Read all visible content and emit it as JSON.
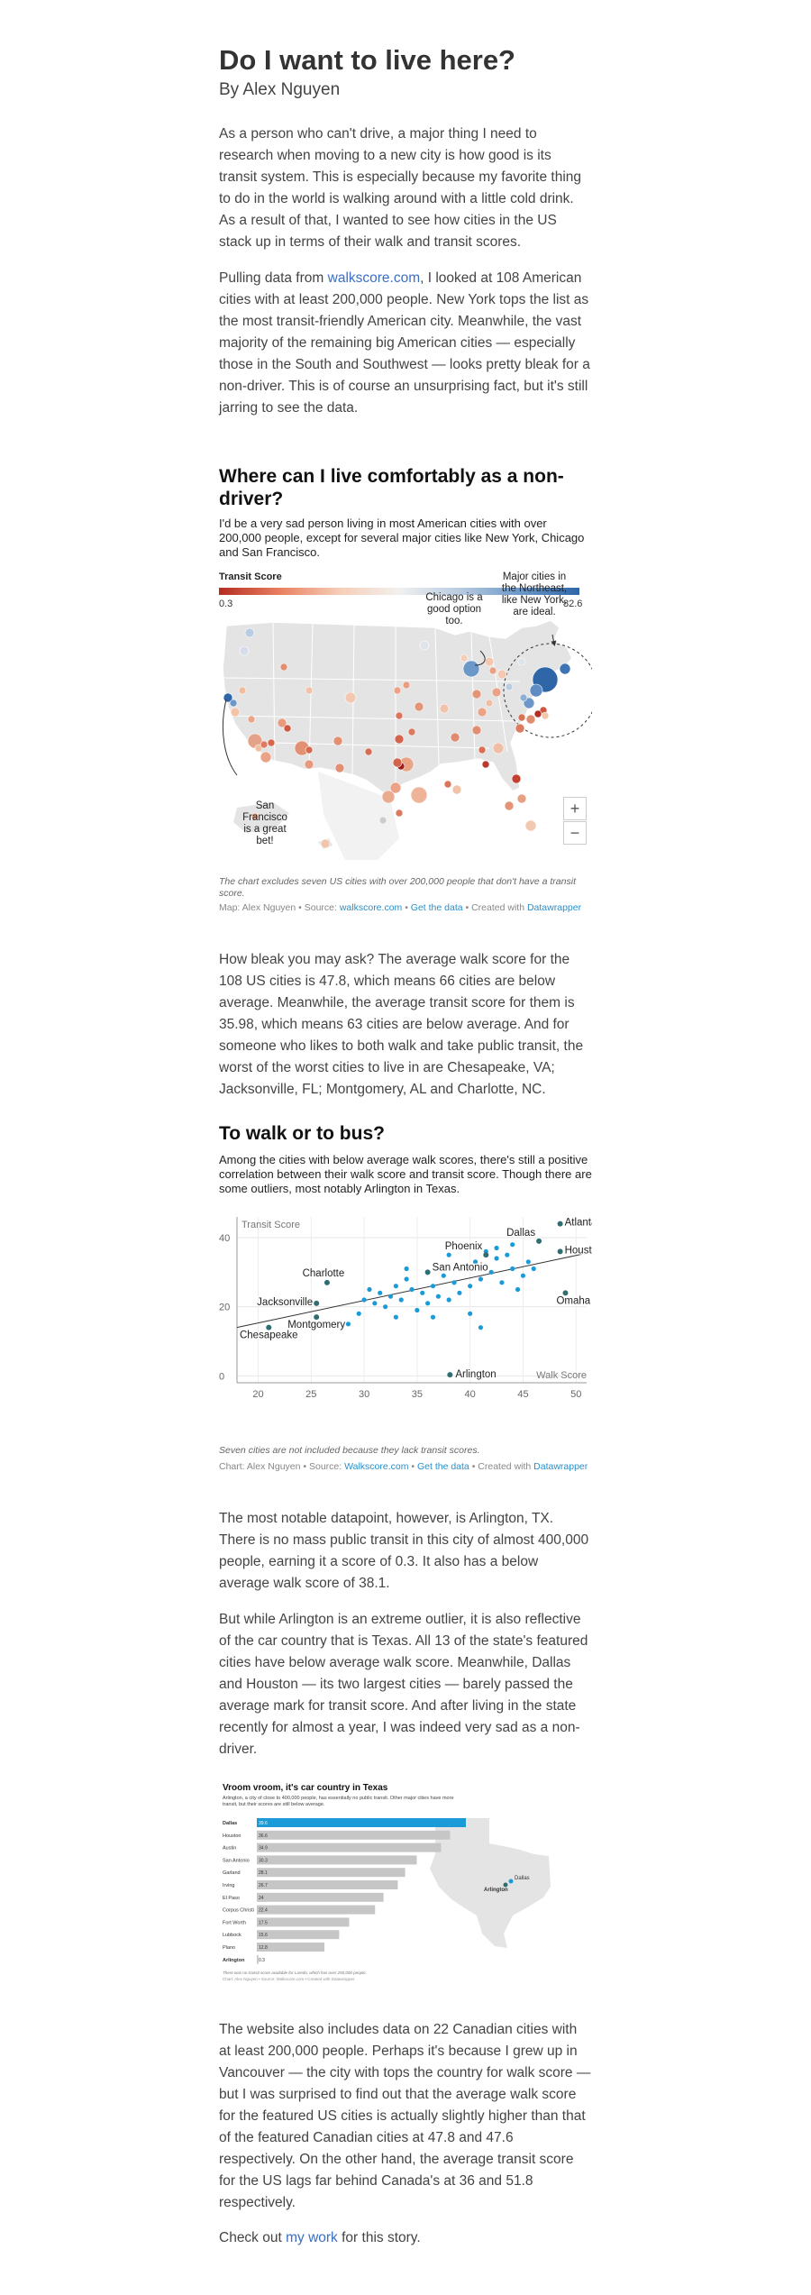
{
  "article": {
    "title": "Do I want to live here?",
    "byline": "By Alex Nguyen",
    "p1": "As a person who can't drive, a major thing I need to research when moving to a new city is how good is its transit system. This is especially because my favorite thing to do in the world is walking around with a little cold drink. As a result of that, I wanted to see how cities in the US stack up in terms of their walk and transit scores.",
    "p2_before_link": "Pulling data from ",
    "p2_link": "walkscore.com",
    "p2_after_link": ", I looked at 108 American cities with at least 200,000 people. New York tops the list as the most transit-friendly American city. Meanwhile, the vast majority of the remaining big American cities — especially those in the South and Southwest — looks pretty bleak for a non-driver. This is of course an unsurprising fact, but it's still jarring to see the data.",
    "p3": "How bleak you may ask? The average walk score for the 108 US cities is 47.8, which means 66 cities are below average. Meanwhile, the average transit score for them is 35.98, which means 63 cities are below average. And for someone who likes to both walk and take public transit, the worst of the worst cities to live in are Chesapeake, VA; Jacksonville, FL; Montgomery, AL and Charlotte, NC.",
    "p4": "The most notable datapoint, however, is Arlington, TX. There is no mass public transit in this city of almost 400,000 people, earning it a score of 0.3. It also has a below average walk score of 38.1.",
    "p5": "But while Arlington is an extreme outlier, it is also reflective of the car country that is Texas. All 13 of the state's featured cities have below average walk score. Meanwhile, Dallas and Houston — its two largest cities — barely passed the average mark for transit score. And after living in the state recently for almost a year, I was indeed very sad as a non-driver.",
    "p6": "The website also includes data on 22 Canadian cities with at least 200,000 people. Perhaps it's because I grew up in Vancouver — the city with tops the country for walk score — but I was surprised to find out that the average walk score for the featured US cities is actually slightly higher than that of the featured Canadian cities at 47.8 and 47.6 respectively. On the other hand, the average transit score for the US lags far behind Canada's at 36 and 51.8 respectively.",
    "p7_before_link": "Check out ",
    "p7_link": "my work",
    "p7_after_link": " for this story."
  },
  "map_section": {
    "heading": "Where can I live comfortably as a non-driver?",
    "dek": "I'd be a very sad person living in most American cities with over 200,000 people, except for several major cities like New York, Chicago and San Francisco.",
    "legend_title": "Transit Score",
    "legend_min": "0.3",
    "legend_max": "82.6",
    "annotation_chicago": [
      "Chicago is a",
      "good option",
      "too."
    ],
    "annotation_northeast": [
      "Major cities in",
      "the Northeast,",
      "like New York,",
      "are ideal."
    ],
    "annotation_sf": [
      "San",
      "Francisco",
      "is a great",
      "bet!"
    ],
    "zoom_in": "+",
    "zoom_out": "−",
    "note": "The chart excludes seven US cities with over 200,000 people that don't have a transit score.",
    "credit_prefix": "Map: Alex Nguyen • Source: ",
    "credit_source": "walkscore.com",
    "credit_sep1": " • ",
    "credit_data": "Get the data",
    "credit_sep2": " • Created with ",
    "credit_tool": "Datawrapper"
  },
  "scatter_section": {
    "heading": "To walk or to bus?",
    "dek": "Among the cities with below average walk scores, there's still a positive correlation between their walk score and transit score. Though there are some outliers, most notably Arlington in Texas.",
    "note": "Seven cities are not included because they lack transit scores.",
    "credit_prefix": "Chart: Alex Nguyen • Source: ",
    "credit_source": "Walkscore.com",
    "credit_sep1": " • ",
    "credit_data": "Get the data",
    "credit_sep2": " • Created with ",
    "credit_tool": "Datawrapper"
  },
  "chart_data": [
    {
      "type": "scatter",
      "xlabel": "Walk Score",
      "ylabel": "Transit Score",
      "xlim": [
        18,
        51
      ],
      "ylim": [
        -2,
        46
      ],
      "x_ticks": [
        "20",
        "25",
        "30",
        "35",
        "40",
        "45",
        "50"
      ],
      "y_ticks": [
        "0",
        "20",
        "40"
      ],
      "grid": true,
      "trendline": {
        "x": [
          18,
          51
        ],
        "y": [
          14.0,
          35.5
        ]
      },
      "color": "#1a9bd7",
      "highlight_color": "#2e6e72",
      "labeled_points": [
        {
          "label": "Atlanta",
          "x": 48.5,
          "y": 44
        },
        {
          "label": "Dallas",
          "x": 46.5,
          "y": 39
        },
        {
          "label": "Houston",
          "x": 48.5,
          "y": 36
        },
        {
          "label": "Phoenix",
          "x": 41.5,
          "y": 35
        },
        {
          "label": "San Antonio",
          "x": 36,
          "y": 30
        },
        {
          "label": "Charlotte",
          "x": 26.5,
          "y": 27
        },
        {
          "label": "Omaha",
          "x": 49,
          "y": 24
        },
        {
          "label": "Jacksonville",
          "x": 25.5,
          "y": 21
        },
        {
          "label": "Montgomery",
          "x": 25.5,
          "y": 17
        },
        {
          "label": "Chesapeake",
          "x": 21,
          "y": 14
        },
        {
          "label": "Arlington",
          "x": 38.1,
          "y": 0.3
        }
      ],
      "points": [
        {
          "x": 29.5,
          "y": 18
        },
        {
          "x": 28.5,
          "y": 15
        },
        {
          "x": 30,
          "y": 22
        },
        {
          "x": 31,
          "y": 21
        },
        {
          "x": 31.5,
          "y": 24
        },
        {
          "x": 32,
          "y": 20
        },
        {
          "x": 32.5,
          "y": 23
        },
        {
          "x": 33,
          "y": 26
        },
        {
          "x": 33.5,
          "y": 22
        },
        {
          "x": 34,
          "y": 28
        },
        {
          "x": 34.5,
          "y": 25
        },
        {
          "x": 35,
          "y": 19
        },
        {
          "x": 35.5,
          "y": 24
        },
        {
          "x": 36,
          "y": 21
        },
        {
          "x": 36.5,
          "y": 26
        },
        {
          "x": 37,
          "y": 23
        },
        {
          "x": 37.5,
          "y": 29
        },
        {
          "x": 38,
          "y": 22
        },
        {
          "x": 38.5,
          "y": 27
        },
        {
          "x": 39,
          "y": 24
        },
        {
          "x": 39.5,
          "y": 31
        },
        {
          "x": 40,
          "y": 26
        },
        {
          "x": 40.5,
          "y": 33
        },
        {
          "x": 41,
          "y": 28
        },
        {
          "x": 41.5,
          "y": 36
        },
        {
          "x": 42,
          "y": 30
        },
        {
          "x": 42.5,
          "y": 34
        },
        {
          "x": 43,
          "y": 27
        },
        {
          "x": 43.5,
          "y": 35
        },
        {
          "x": 44,
          "y": 31
        },
        {
          "x": 44.5,
          "y": 25
        },
        {
          "x": 45,
          "y": 29
        },
        {
          "x": 45.5,
          "y": 33
        },
        {
          "x": 46,
          "y": 31
        },
        {
          "x": 40,
          "y": 18
        },
        {
          "x": 41,
          "y": 14
        },
        {
          "x": 36.5,
          "y": 17
        },
        {
          "x": 34,
          "y": 31
        },
        {
          "x": 30.5,
          "y": 25
        },
        {
          "x": 38,
          "y": 35
        },
        {
          "x": 42.5,
          "y": 37
        },
        {
          "x": 44,
          "y": 38
        },
        {
          "x": 33,
          "y": 17
        }
      ]
    },
    {
      "type": "bar",
      "title": "Vroom vroom, it's car country in Texas",
      "subtitle": "Arlington, a city of close to 400,000 people, has essentially no public transit. Other major cities have more transit, but their scores are still below average.",
      "categories": [
        "Dallas",
        "Houston",
        "Austin",
        "San Antonio",
        "Garland",
        "Irving",
        "El Paso",
        "Corpus Christi",
        "Fort Worth",
        "Lubbock",
        "Plano",
        "Arlington"
      ],
      "values": [
        39.6,
        36.6,
        34.9,
        30.3,
        28.1,
        26.7,
        24.0,
        22.4,
        17.5,
        15.6,
        12.8,
        0.3
      ],
      "highlight_color": "#1a9bd7",
      "bar_color": "#c6c6c6",
      "map_labels": [
        "Dallas",
        "Arlington"
      ],
      "note": "There was no transit score available for Laredo, which has over 250,000 people.",
      "credit": "Chart: Alex Nguyen • Source: Walkscore.com • Created with Datawrapper"
    }
  ]
}
